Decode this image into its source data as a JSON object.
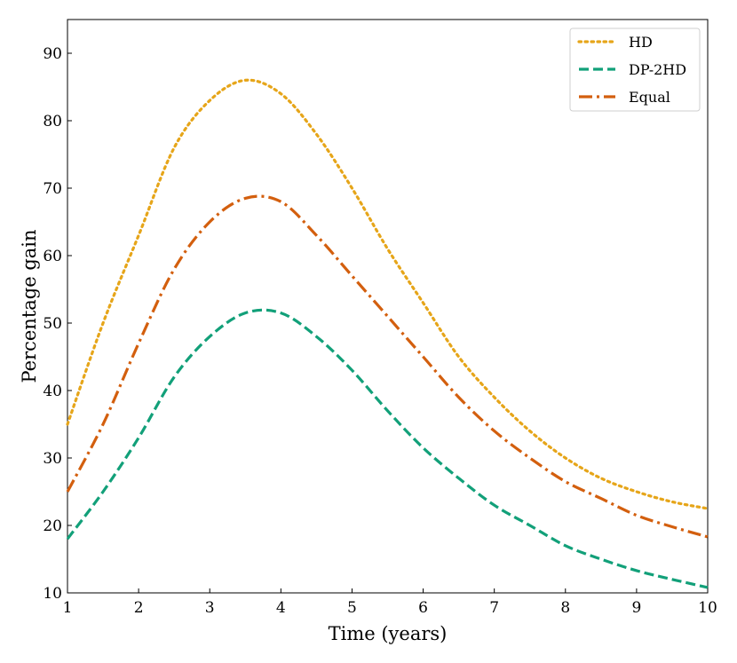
{
  "chart_data": {
    "type": "line",
    "title": "",
    "xlabel": "Time (years)",
    "ylabel": "Percentage gain",
    "xlim": [
      1,
      10
    ],
    "ylim": [
      10,
      95
    ],
    "xticks": [
      1,
      2,
      3,
      4,
      5,
      6,
      7,
      8,
      9,
      10
    ],
    "yticks": [
      10,
      20,
      30,
      40,
      50,
      60,
      70,
      80,
      90
    ],
    "grid": false,
    "legend_position": "top-right",
    "x": [
      1,
      1.5,
      2,
      2.5,
      3,
      3.5,
      4,
      4.5,
      5,
      5.5,
      6,
      6.5,
      7,
      7.5,
      8,
      8.5,
      9,
      9.5,
      10
    ],
    "series": [
      {
        "name": "HD",
        "color": "#E6A519",
        "style": "dotted",
        "values": [
          35,
          50,
          63,
          76,
          83,
          86,
          84,
          78,
          70,
          61,
          53,
          45,
          39,
          34,
          30,
          27,
          25,
          23.5,
          22.5
        ]
      },
      {
        "name": "DP-2HD",
        "color": "#12A079",
        "style": "dashed",
        "values": [
          18,
          25,
          33,
          42,
          48,
          51.5,
          51.5,
          48,
          43,
          37,
          31.5,
          27,
          23,
          20,
          17,
          15,
          13.3,
          12,
          10.8
        ]
      },
      {
        "name": "Equal",
        "color": "#D35F0E",
        "style": "dashdot",
        "values": [
          25,
          35,
          47,
          58,
          65,
          68.5,
          68,
          63,
          57,
          51,
          45,
          39,
          34,
          30,
          26.5,
          24,
          21.5,
          19.8,
          18.3
        ]
      }
    ]
  }
}
